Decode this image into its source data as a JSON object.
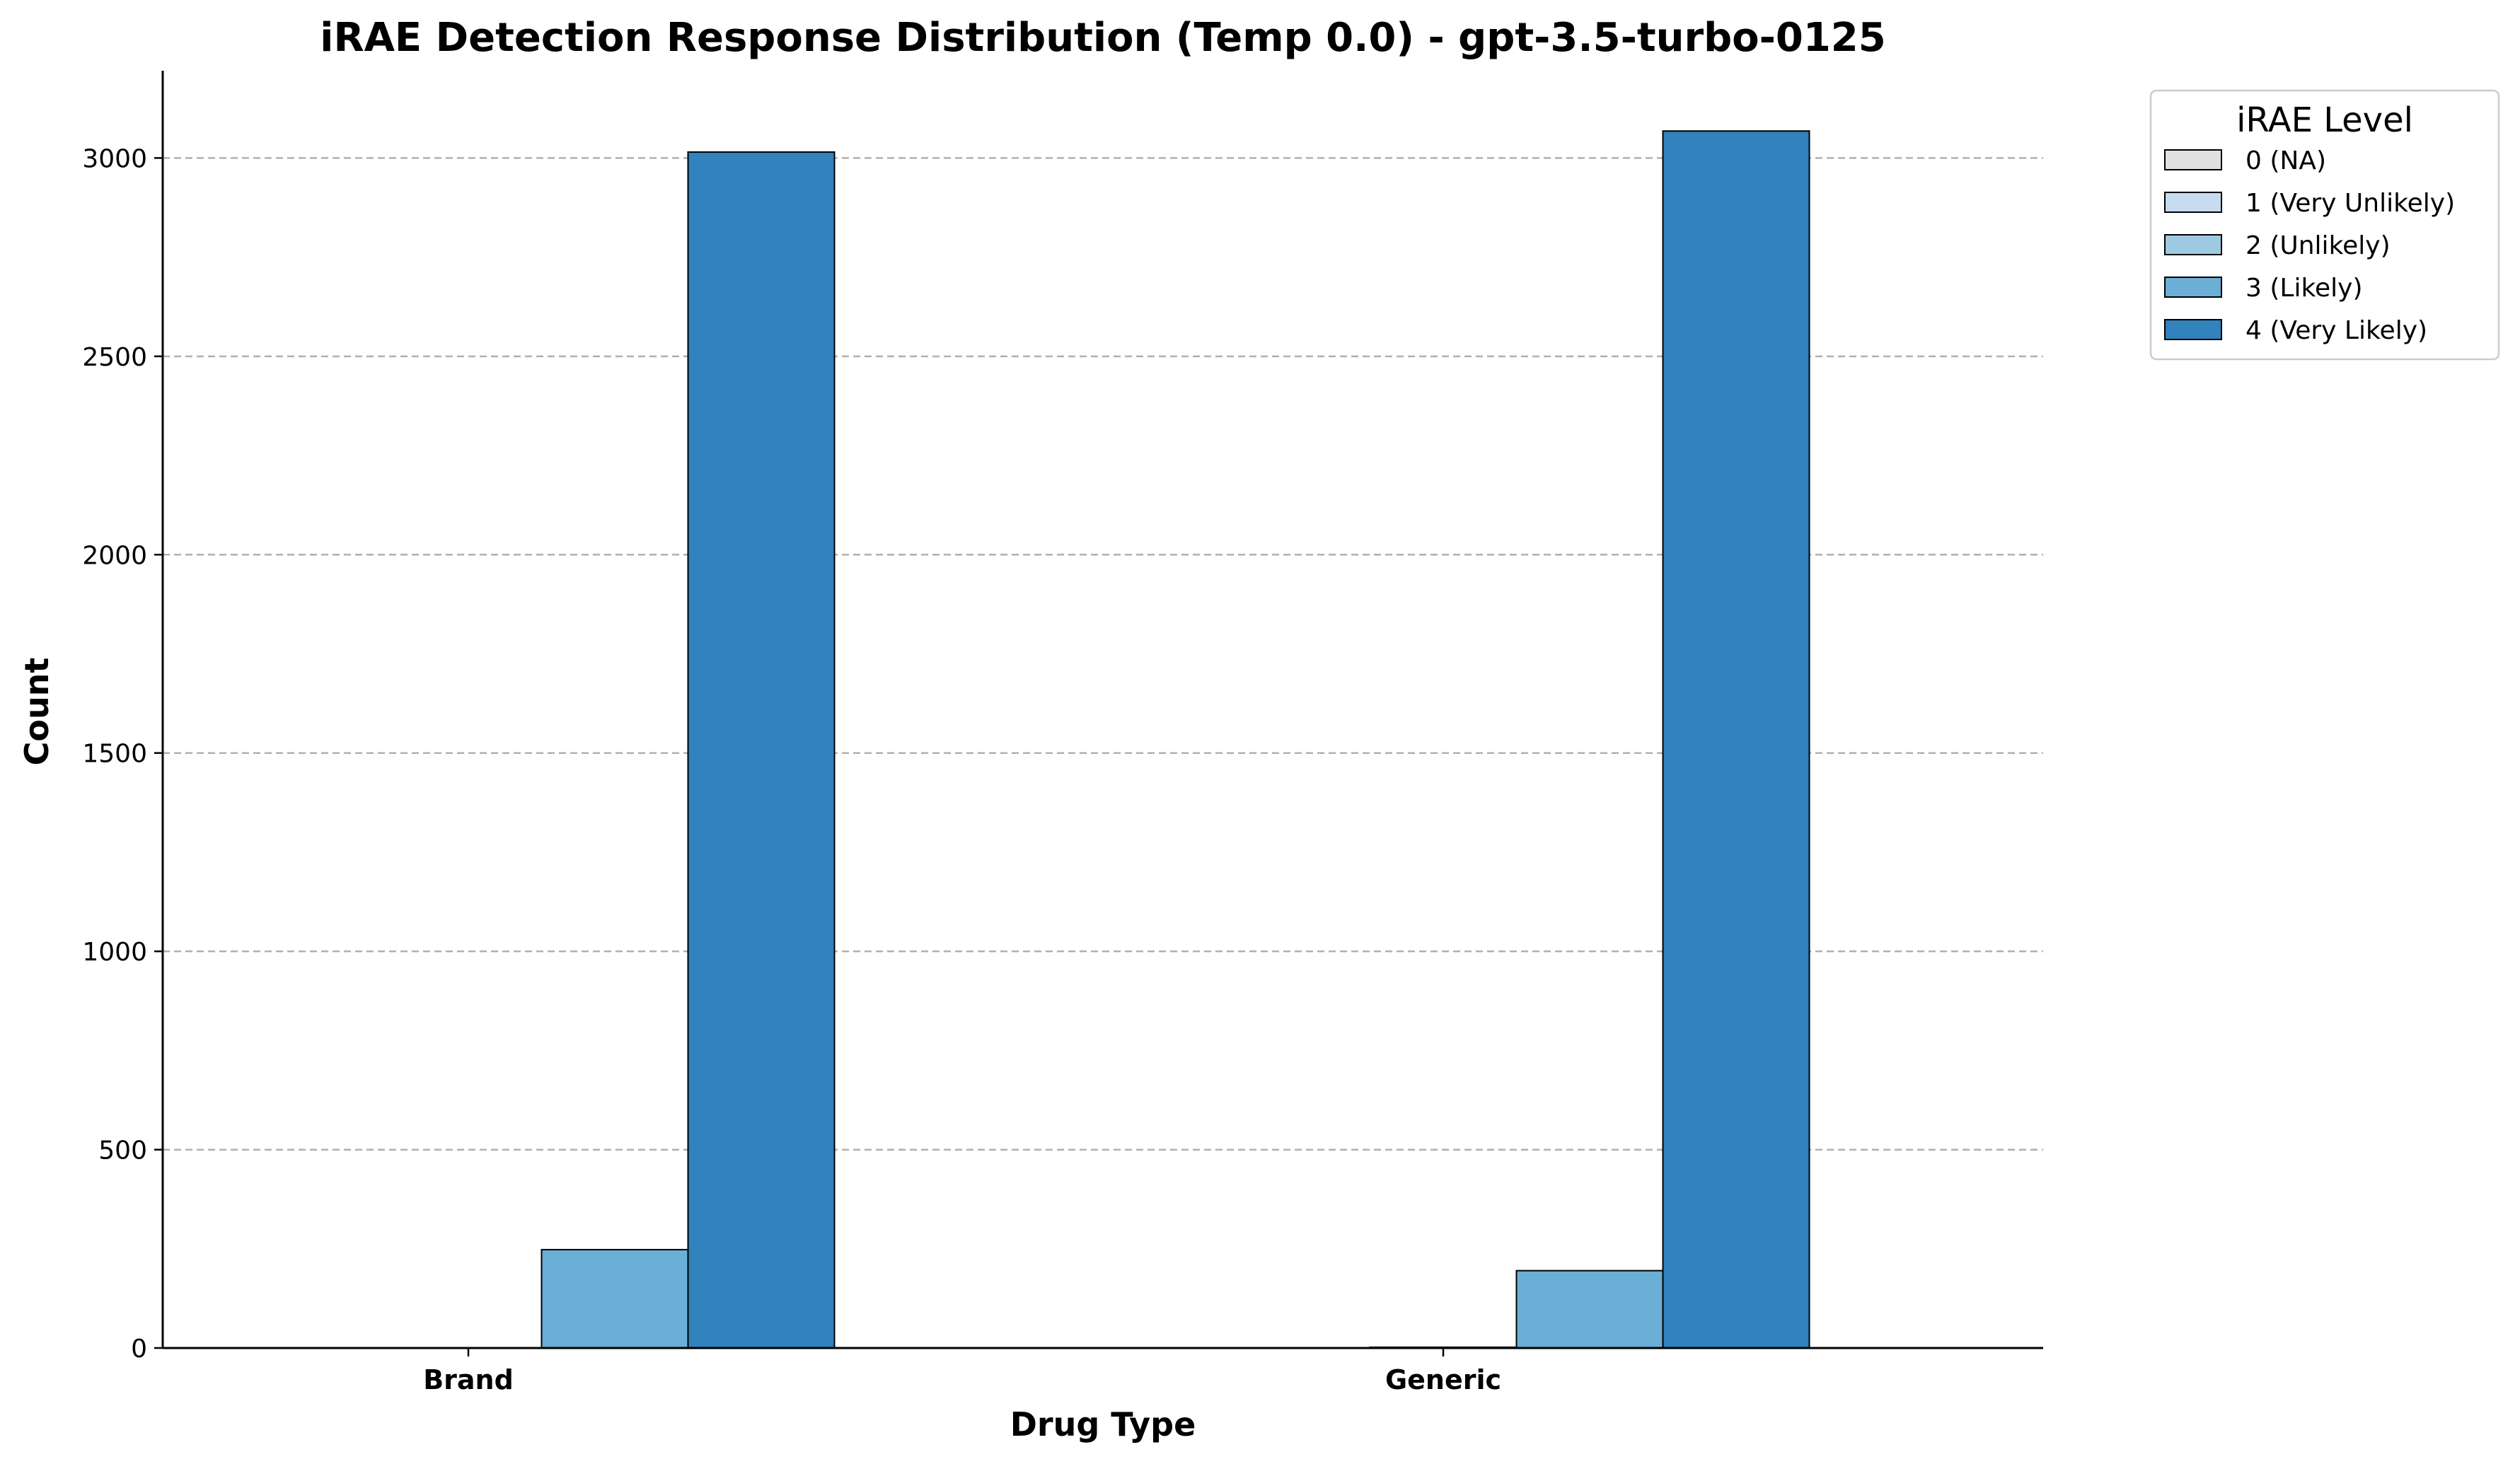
{
  "chart_data": {
    "type": "bar",
    "title": "iRAE Detection Response Distribution (Temp 0.0) - gpt-3.5-turbo-0125",
    "xlabel": "Drug Type",
    "ylabel": "Count",
    "categories": [
      "Brand",
      "Generic"
    ],
    "ylim": [
      0,
      3220
    ],
    "yticks": [
      0,
      500,
      1000,
      1500,
      2000,
      2500,
      3000
    ],
    "grid": "horizontal dashed",
    "legend": {
      "title": "iRAE Level",
      "placement": "outside-top-right"
    },
    "series": [
      {
        "name": "0 (NA)",
        "values": [
          0,
          0
        ],
        "color": "#e0e0e0"
      },
      {
        "name": "1 (Very Unlikely)",
        "values": [
          0,
          0
        ],
        "color": "#c6dbef"
      },
      {
        "name": "2 (Unlikely)",
        "values": [
          0,
          2
        ],
        "color": "#9ecae1"
      },
      {
        "name": "3 (Likely)",
        "values": [
          248,
          195
        ],
        "color": "#6baed6"
      },
      {
        "name": "4 (Very Likely)",
        "values": [
          3015,
          3068
        ],
        "color": "#3182bd"
      }
    ]
  }
}
